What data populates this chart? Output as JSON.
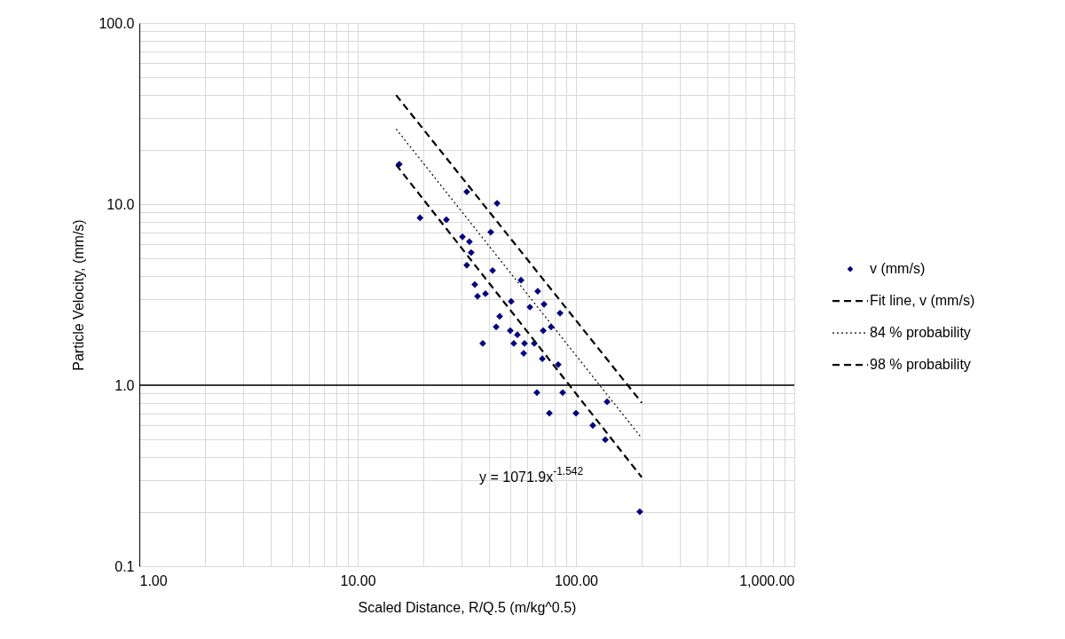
{
  "chart_data": {
    "type": "scatter",
    "xlabel": "Scaled Distance, R/Q.5 (m/kg^0.5)",
    "ylabel": "Particle Velocity, (mm/s)",
    "log": "xy",
    "grid": true,
    "legend": "right",
    "xlim": [
      1,
      1000
    ],
    "xticks": [
      {
        "value": 1,
        "label": "1.00"
      },
      {
        "value": 2,
        "label": null
      },
      {
        "value": 3,
        "label": null
      },
      {
        "value": 4,
        "label": null
      },
      {
        "value": 5,
        "label": null
      },
      {
        "value": 6,
        "label": null
      },
      {
        "value": 7,
        "label": null
      },
      {
        "value": 8,
        "label": null
      },
      {
        "value": 9,
        "label": null
      },
      {
        "value": 10,
        "label": "10.00"
      },
      {
        "value": 20,
        "label": null
      },
      {
        "value": 30,
        "label": null
      },
      {
        "value": 40,
        "label": null
      },
      {
        "value": 50,
        "label": null
      },
      {
        "value": 60,
        "label": null
      },
      {
        "value": 70,
        "label": null
      },
      {
        "value": 80,
        "label": null
      },
      {
        "value": 90,
        "label": null
      },
      {
        "value": 100,
        "label": "100.00"
      },
      {
        "value": 200,
        "label": null
      },
      {
        "value": 300,
        "label": null
      },
      {
        "value": 400,
        "label": null
      },
      {
        "value": 500,
        "label": null
      },
      {
        "value": 600,
        "label": null
      },
      {
        "value": 700,
        "label": null
      },
      {
        "value": 800,
        "label": null
      },
      {
        "value": 900,
        "label": null
      },
      {
        "value": 1000,
        "label": "1,000.00"
      }
    ],
    "ylim": [
      0.1,
      100
    ],
    "yticks": [
      {
        "value": 0.1,
        "label": "0.1"
      },
      {
        "value": 0.2,
        "label": null
      },
      {
        "value": 0.3,
        "label": null
      },
      {
        "value": 0.4,
        "label": null
      },
      {
        "value": 0.5,
        "label": null
      },
      {
        "value": 0.6,
        "label": null
      },
      {
        "value": 0.7,
        "label": null
      },
      {
        "value": 0.8,
        "label": null
      },
      {
        "value": 0.9,
        "label": null
      },
      {
        "value": 1,
        "label": "1.0"
      },
      {
        "value": 2,
        "label": null
      },
      {
        "value": 3,
        "label": null
      },
      {
        "value": 4,
        "label": null
      },
      {
        "value": 5,
        "label": null
      },
      {
        "value": 6,
        "label": null
      },
      {
        "value": 7,
        "label": null
      },
      {
        "value": 8,
        "label": null
      },
      {
        "value": 9,
        "label": null
      },
      {
        "value": 10,
        "label": "10.0"
      },
      {
        "value": 20,
        "label": null
      },
      {
        "value": 30,
        "label": null
      },
      {
        "value": 40,
        "label": null
      },
      {
        "value": 50,
        "label": null
      },
      {
        "value": 60,
        "label": null
      },
      {
        "value": 70,
        "label": null
      },
      {
        "value": 80,
        "label": null
      },
      {
        "value": 90,
        "label": null
      },
      {
        "value": 100,
        "label": "100.0"
      }
    ],
    "ref_lines": [
      {
        "axis": "y",
        "value": 1,
        "color": "#000000"
      }
    ],
    "annotations": [
      "y = 1071.9x$^{-1.542}$"
    ],
    "series": [
      {
        "name": "v (mm/s)",
        "marker": "diamond",
        "color": "#000080",
        "x": [
          15.5,
          19.3,
          25.5,
          31.6,
          43.5,
          30.2,
          32.5,
          33.1,
          40.7,
          31.6,
          41.5,
          56.0,
          34.4,
          35.4,
          38.5,
          37.4,
          50.5,
          44.7,
          43.1,
          50.0,
          53.9,
          51.9,
          58.1,
          57.6,
          61.5,
          66.8,
          71.4,
          64.4,
          70.8,
          76.9,
          84.5,
          70.1,
          82.9,
          66.2,
          75.5,
          86.9,
          100,
          138.8,
          119.4,
          136.2,
          196
        ],
        "values": [
          16.6,
          8.4,
          8.2,
          11.7,
          10.1,
          6.6,
          6.2,
          5.4,
          7.0,
          4.6,
          4.3,
          3.8,
          3.6,
          3.1,
          3.2,
          1.7,
          2.9,
          2.4,
          2.1,
          2.0,
          1.9,
          1.7,
          1.7,
          1.5,
          2.7,
          3.3,
          2.8,
          1.7,
          2.0,
          2.1,
          2.5,
          1.4,
          1.3,
          0.91,
          0.7,
          0.91,
          0.7,
          0.81,
          0.6,
          0.5,
          0.2
        ]
      },
      {
        "name": "Fit line, v (mm/s)",
        "type": "line",
        "color": "#000000",
        "line_style": "dashed",
        "x": [
          15,
          200
        ],
        "values": [
          16.5,
          0.31
        ]
      },
      {
        "name": "84 % probability",
        "type": "line",
        "color": "#000000",
        "line_style": "dotted",
        "x": [
          15,
          200
        ],
        "values": [
          26,
          0.51
        ]
      },
      {
        "name": "98 % probability",
        "type": "line",
        "color": "#000000",
        "line_style": "dashed",
        "x": [
          15,
          200
        ],
        "values": [
          40,
          0.8
        ]
      }
    ]
  }
}
